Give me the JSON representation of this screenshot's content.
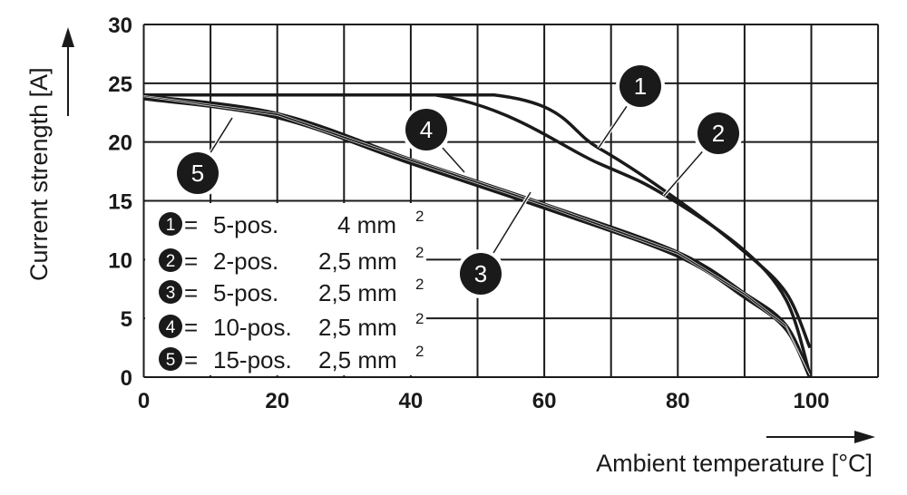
{
  "chart_data": {
    "type": "line",
    "title": "",
    "xlabel": "Ambient temperature [°C]",
    "ylabel": "Current strength [A]",
    "xlim": [
      0,
      110
    ],
    "ylim": [
      0,
      30
    ],
    "xticks": [
      0,
      20,
      40,
      60,
      80,
      100
    ],
    "yticks": [
      0,
      5,
      10,
      15,
      20,
      25,
      30
    ],
    "grid": true,
    "grid_step": {
      "x": 10,
      "y": 5
    },
    "legend_placement": "bottom-left",
    "line_color": "#1a1a1a",
    "series": [
      {
        "name": "5-pos. 4 mm²",
        "id": "1",
        "legend": {
          "num": "1",
          "eq": "=",
          "pos": "5-pos.",
          "size": "4 mm",
          "sup": "2"
        },
        "x": [
          0,
          52.5,
          68.1,
          80.4,
          89.9,
          96.2,
          99.8
        ],
        "y": [
          24,
          24,
          19.5,
          14.9,
          10.7,
          7.2,
          2.5
        ]
      },
      {
        "name": "2-pos. 2,5 mm²",
        "id": "2",
        "legend": {
          "num": "2",
          "eq": "=",
          "pos": "2-pos.",
          "size": "2,5 mm",
          "sup": "2"
        },
        "x": [
          0,
          43.7,
          68.1,
          77.7,
          89.5,
          96.2,
          99.8
        ],
        "y": [
          24,
          24,
          18.2,
          15.6,
          11.0,
          6.6,
          0.2
        ]
      },
      {
        "name": "5-pos. 2,5 mm²",
        "id": "3",
        "legend": {
          "num": "3",
          "eq": "=",
          "pos": "5-pos.",
          "size": "2,5 mm",
          "sup": "2"
        },
        "x": [
          0,
          20,
          40,
          60,
          80,
          90,
          96.2,
          99.8
        ],
        "y": [
          23.9,
          22.4,
          18.5,
          14.7,
          10.6,
          7.1,
          4.4,
          0
        ]
      },
      {
        "name": "10-pos. 2,5 mm²",
        "id": "4",
        "legend": {
          "num": "4",
          "eq": "=",
          "pos": "10-pos.",
          "size": "2,5 mm",
          "sup": "2"
        },
        "x": [
          0,
          20,
          40,
          60,
          80,
          90,
          96.2,
          99.8
        ],
        "y": [
          23.8,
          22.3,
          18.4,
          14.6,
          10.5,
          7.0,
          4.3,
          0
        ]
      },
      {
        "name": "15-pos. 2,5 mm²",
        "id": "5",
        "legend": {
          "num": "5",
          "eq": "=",
          "pos": "15-pos.",
          "size": "2,5 mm",
          "sup": "2"
        },
        "x": [
          0,
          20,
          40,
          60,
          80,
          90,
          96.2,
          99.8
        ],
        "y": [
          23.7,
          22.1,
          18.2,
          14.4,
          10.3,
          6.8,
          4.1,
          0
        ]
      }
    ]
  }
}
